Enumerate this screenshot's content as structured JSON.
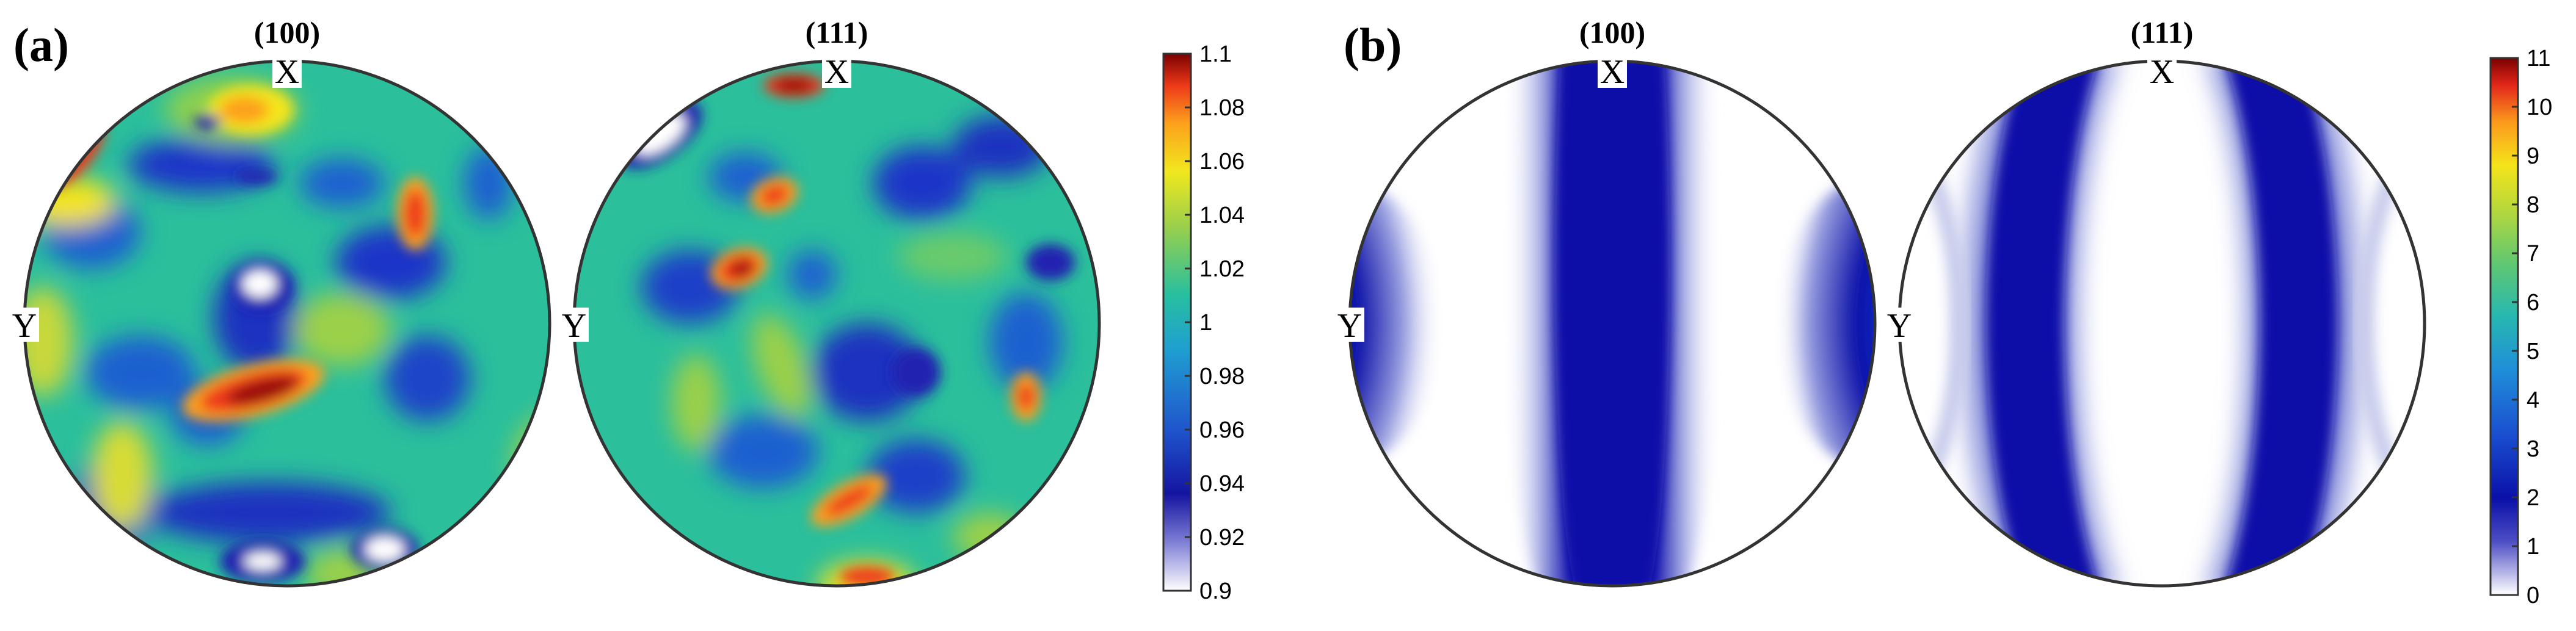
{
  "panels": [
    {
      "label": "(a)",
      "pole_figures": [
        {
          "plane": "(100)",
          "top_axis": "X",
          "left_axis": "Y"
        },
        {
          "plane": "(111)",
          "top_axis": "X",
          "left_axis": "Y"
        }
      ],
      "colorbar": {
        "min": 0.9,
        "max": 1.1,
        "ticks": [
          "1.1",
          "1.08",
          "1.06",
          "1.04",
          "1.02",
          "1",
          "0.98",
          "0.96",
          "0.94",
          "0.92",
          "0.9"
        ]
      }
    },
    {
      "label": "(b)",
      "pole_figures": [
        {
          "plane": "(100)",
          "top_axis": "X",
          "left_axis": "Y"
        },
        {
          "plane": "(111)",
          "top_axis": "X",
          "left_axis": "Y"
        }
      ],
      "colorbar": {
        "min": 0,
        "max": 11,
        "ticks": [
          "11",
          "10",
          "9",
          "8",
          "7",
          "6",
          "5",
          "4",
          "3",
          "2",
          "1",
          "0"
        ]
      }
    }
  ],
  "colormap": [
    "#ffffff",
    "#1f1f9e",
    "#1a3ccc",
    "#1f78d4",
    "#25a7b8",
    "#3fc08a",
    "#9bd04a",
    "#f1e81e",
    "#fca11c",
    "#f4451c",
    "#b50d0d",
    "#7a0000"
  ]
}
